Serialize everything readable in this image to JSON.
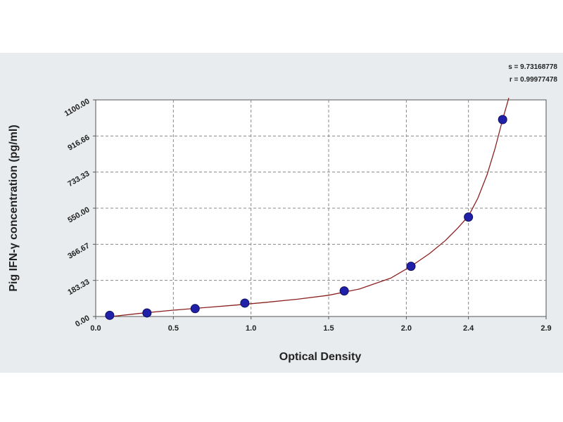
{
  "chart_data": {
    "type": "scatter",
    "title": "",
    "xlabel": "Optical Density",
    "ylabel": "Pig IFN-γ concentration (pg/ml)",
    "xlim": [
      0.0,
      2.9
    ],
    "ylim": [
      0.0,
      1100.0
    ],
    "x_ticks": [
      0.0,
      0.5,
      1.0,
      1.5,
      2.0,
      2.4,
      2.9
    ],
    "x_tick_labels": [
      "0.0",
      "0.5",
      "1.0",
      "1.5",
      "2.0",
      "2.4",
      "2.9"
    ],
    "y_ticks": [
      0.0,
      183.33,
      366.67,
      550.0,
      733.33,
      916.66,
      1100.0
    ],
    "y_tick_labels": [
      "0.00",
      "183.33",
      "366.67",
      "550.00",
      "733.33",
      "916.66",
      "1100.00"
    ],
    "grid": true,
    "series": [
      {
        "marker": "circle",
        "color": "#2020a8",
        "x": [
          0.09,
          0.33,
          0.64,
          0.96,
          1.6,
          2.03,
          2.4,
          2.62
        ],
        "y": [
          6,
          18,
          40,
          68,
          130,
          255,
          505,
          1000
        ]
      }
    ],
    "fit_curve": {
      "color": "#8b2020",
      "x": [
        0.1,
        0.3,
        0.5,
        0.7,
        0.9,
        1.1,
        1.3,
        1.5,
        1.7,
        1.9,
        2.03,
        2.15,
        2.25,
        2.33,
        2.4,
        2.46,
        2.52,
        2.57,
        2.62,
        2.66
      ],
      "y": [
        0,
        17,
        32,
        45,
        58,
        72,
        88,
        108,
        140,
        195,
        255,
        320,
        385,
        448,
        510,
        600,
        720,
        850,
        1000,
        1110
      ]
    },
    "stats": {
      "s_label": "s = 9.73168778",
      "r_label": "r = 0.99977478"
    }
  }
}
